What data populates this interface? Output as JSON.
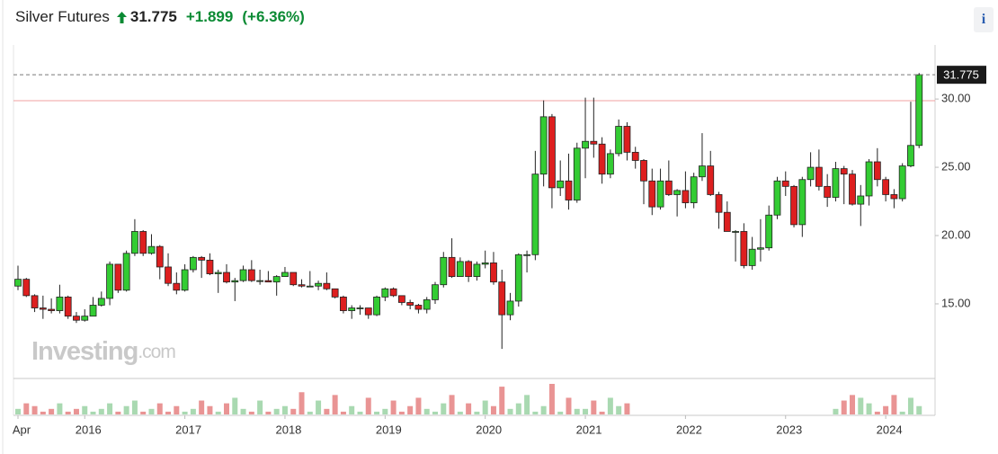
{
  "chart_data": {
    "type": "candlestick",
    "title": "Silver Futures",
    "last_price": 31.775,
    "change": {
      "value": 1.899,
      "label": "+1.899"
    },
    "change_pct": {
      "value": 6.36,
      "label": "(+6.36%)"
    },
    "info_button": "i",
    "watermark": {
      "brand": "Investing",
      "suffix": ".com"
    },
    "previous_close_line": 29.876,
    "up_color": "#33cc33",
    "down_color": "#dd1f1f",
    "volume_up_color": "#a9d9b1",
    "volume_down_color": "#e99494",
    "grid": false,
    "ylim": [
      9.6,
      33.3
    ],
    "yticks": [
      {
        "value": 15,
        "label": "15.00"
      },
      {
        "value": 20,
        "label": "20.00"
      },
      {
        "value": 25,
        "label": "25.00"
      },
      {
        "value": 30,
        "label": "30.00"
      }
    ],
    "categories": [
      "Apr",
      null,
      null,
      null,
      null,
      null,
      null,
      null,
      "2016",
      null,
      null,
      null,
      null,
      null,
      null,
      null,
      null,
      null,
      null,
      null,
      "2017",
      null,
      null,
      null,
      null,
      null,
      null,
      null,
      null,
      null,
      null,
      null,
      "2018",
      null,
      null,
      null,
      null,
      null,
      null,
      null,
      null,
      null,
      null,
      null,
      "2019",
      null,
      null,
      null,
      null,
      null,
      null,
      null,
      null,
      null,
      null,
      null,
      "2020",
      null,
      null,
      null,
      null,
      null,
      null,
      null,
      null,
      null,
      null,
      null,
      "2021",
      null,
      null,
      null,
      null,
      null,
      null,
      null,
      null,
      null,
      null,
      null,
      "2022",
      null,
      null,
      null,
      null,
      null,
      null,
      null,
      null,
      null,
      null,
      null,
      "2023",
      null,
      null,
      null,
      null,
      null,
      null,
      null,
      null,
      null,
      null,
      null,
      "2024",
      null,
      null,
      null,
      null
    ],
    "open": [
      16.3,
      16.8,
      15.6,
      14.7,
      14.6,
      14.5,
      15.5,
      14.1,
      13.8,
      14.1,
      14.9,
      15.4,
      17.9,
      16.0,
      18.7,
      20.3,
      18.7,
      19.2,
      17.7,
      16.5,
      16.0,
      17.5,
      18.4,
      18.2,
      17.2,
      17.3,
      16.6,
      16.7,
      17.5,
      16.7,
      16.7,
      16.6,
      17.0,
      17.3,
      16.4,
      16.3,
      16.3,
      16.5,
      16.1,
      15.5,
      14.5,
      14.7,
      14.7,
      14.2,
      15.5,
      16.1,
      15.6,
      15.1,
      14.9,
      14.6,
      15.3,
      16.4,
      18.4,
      17.0,
      18.1,
      17.0,
      17.9,
      18.0,
      16.6,
      14.2,
      15.2,
      18.6,
      18.6,
      24.5,
      28.7,
      23.5,
      24.0,
      22.6,
      26.4,
      26.9,
      26.7,
      24.5,
      26.0,
      28.0,
      26.1,
      25.5,
      24.0,
      22.1,
      24.0,
      23.0,
      23.3,
      22.4,
      24.3,
      25.1,
      23.0,
      21.7,
      20.3,
      20.3,
      17.8,
      19.0,
      19.1,
      21.5,
      24.0,
      23.6,
      20.8,
      24.1,
      25.0,
      23.6,
      22.8,
      24.9,
      24.5,
      22.3,
      22.9,
      25.4,
      24.1,
      23.0,
      22.7,
      25.1,
      26.6
    ],
    "high": [
      17.8,
      16.9,
      15.7,
      15.6,
      15.4,
      16.4,
      15.6,
      14.4,
      14.6,
      15.5,
      15.9,
      18.1,
      17.9,
      18.9,
      21.2,
      20.4,
      20.1,
      19.3,
      18.7,
      17.3,
      17.9,
      18.5,
      18.5,
      18.7,
      17.5,
      17.9,
      16.9,
      17.8,
      18.2,
      17.5,
      17.4,
      17.1,
      17.7,
      17.3,
      16.8,
      17.4,
      16.7,
      17.3,
      16.1,
      15.6,
      14.9,
      14.9,
      14.7,
      15.6,
      16.2,
      16.2,
      15.6,
      15.3,
      15.0,
      15.5,
      16.6,
      18.8,
      19.8,
      18.4,
      18.2,
      18.1,
      18.9,
      18.8,
      17.5,
      15.8,
      18.7,
      18.9,
      26.2,
      29.9,
      28.9,
      25.5,
      26.0,
      26.8,
      30.1,
      30.1,
      27.2,
      26.3,
      28.5,
      28.3,
      26.5,
      25.6,
      24.9,
      24.9,
      25.5,
      23.4,
      24.7,
      24.6,
      27.5,
      26.2,
      23.2,
      22.5,
      20.4,
      20.9,
      19.9,
      21.2,
      22.2,
      24.3,
      24.7,
      23.7,
      24.3,
      26.1,
      26.3,
      24.5,
      25.4,
      25.1,
      24.8,
      23.7,
      25.6,
      26.4,
      24.3,
      23.4,
      25.3,
      29.8,
      31.9
    ],
    "low": [
      16.0,
      15.5,
      14.4,
      13.9,
      14.3,
      14.3,
      13.9,
      13.6,
      13.7,
      14.1,
      14.8,
      14.9,
      15.8,
      15.9,
      18.5,
      18.5,
      18.6,
      16.8,
      16.3,
      15.7,
      15.9,
      17.3,
      16.9,
      17.1,
      15.8,
      16.5,
      15.2,
      16.6,
      16.6,
      16.4,
      16.6,
      15.6,
      17.0,
      16.3,
      16.2,
      16.3,
      16.0,
      16.0,
      15.4,
      14.3,
      13.9,
      14.2,
      13.9,
      14.1,
      15.2,
      15.5,
      14.9,
      14.6,
      14.3,
      14.3,
      15.0,
      16.2,
      16.9,
      17.0,
      16.6,
      16.7,
      17.6,
      16.4,
      11.7,
      13.8,
      14.8,
      17.3,
      18.2,
      23.6,
      22.0,
      22.9,
      21.9,
      22.4,
      24.2,
      25.7,
      23.8,
      24.2,
      25.8,
      25.5,
      24.9,
      22.3,
      21.5,
      21.9,
      22.9,
      21.4,
      22.0,
      22.0,
      24.0,
      22.9,
      20.5,
      20.3,
      18.1,
      17.6,
      17.5,
      18.1,
      18.9,
      21.2,
      22.9,
      20.6,
      19.9,
      23.6,
      23.3,
      22.1,
      22.5,
      22.3,
      22.2,
      20.7,
      22.2,
      23.6,
      22.5,
      22.0,
      22.5,
      25.0,
      26.4
    ],
    "close": [
      16.8,
      15.6,
      14.7,
      14.6,
      14.5,
      15.5,
      14.1,
      13.8,
      14.1,
      14.9,
      15.4,
      17.9,
      16.0,
      18.7,
      20.3,
      18.7,
      19.2,
      17.7,
      16.5,
      16.0,
      17.5,
      18.4,
      18.2,
      17.2,
      17.3,
      16.6,
      16.7,
      17.5,
      16.7,
      16.7,
      16.6,
      17.0,
      17.3,
      16.4,
      16.3,
      16.3,
      16.5,
      16.1,
      15.5,
      14.5,
      14.7,
      14.7,
      14.2,
      15.5,
      16.1,
      15.6,
      15.1,
      14.9,
      14.6,
      15.3,
      16.4,
      18.4,
      17.0,
      18.1,
      17.0,
      17.9,
      18.0,
      16.6,
      14.2,
      15.2,
      18.6,
      18.6,
      24.5,
      28.7,
      23.5,
      24.0,
      22.6,
      26.4,
      26.9,
      26.7,
      24.5,
      26.0,
      28.0,
      26.1,
      25.5,
      24.0,
      22.1,
      24.0,
      23.0,
      23.3,
      22.4,
      24.3,
      25.1,
      23.0,
      21.7,
      20.3,
      20.3,
      17.8,
      19.0,
      19.1,
      21.5,
      24.0,
      23.6,
      20.8,
      24.1,
      25.0,
      23.6,
      22.8,
      24.9,
      24.5,
      22.3,
      22.9,
      25.4,
      24.1,
      23.0,
      22.7,
      25.1,
      26.6,
      31.775
    ],
    "volume": [
      2,
      4,
      3,
      1,
      2,
      4,
      1,
      2,
      3,
      1,
      2,
      4,
      1,
      3,
      5,
      1,
      2,
      4,
      1,
      3,
      1,
      2,
      5,
      3,
      1,
      4,
      6,
      2,
      1,
      5,
      1,
      2,
      3,
      2,
      8,
      1,
      5,
      2,
      7,
      1,
      3,
      1,
      6,
      1,
      2,
      5,
      1,
      3,
      6,
      2,
      1,
      4,
      7,
      1,
      4,
      1,
      5,
      3,
      10,
      2,
      4,
      7,
      1,
      3,
      11,
      1,
      6,
      2,
      2,
      5,
      1,
      6,
      3,
      4,
      null,
      null,
      null,
      null,
      null,
      null,
      null,
      null,
      null,
      null,
      null,
      null,
      null,
      null,
      null,
      null,
      null,
      null,
      null,
      null,
      null,
      null,
      null,
      null,
      2,
      5,
      7,
      6,
      4,
      1,
      3,
      7,
      1,
      6,
      3
    ]
  }
}
